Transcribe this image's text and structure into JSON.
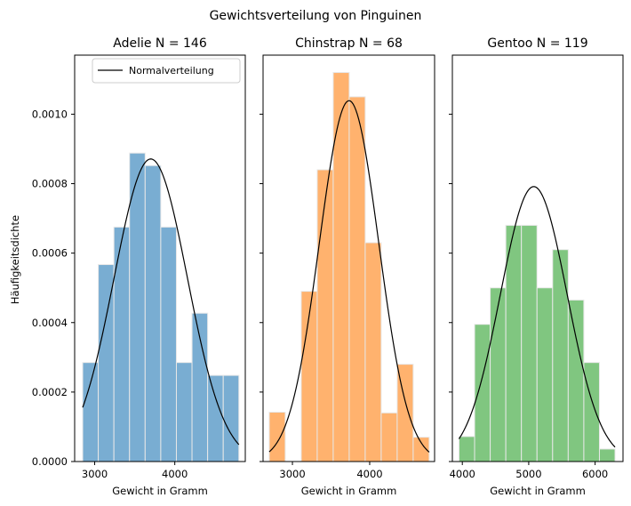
{
  "figure": {
    "suptitle": "Gewichtsverteilung von Pinguinen",
    "ylabel": "Häufigkeitsdichte",
    "legend_label": "Normalverteilung"
  },
  "chart_data": [
    {
      "type": "bar",
      "title": "Adelie N = 146",
      "xlabel": "Gewicht in Gramm",
      "ylabel": "Häufigkeitsdichte",
      "color": "#1f77b4",
      "bin_edges": [
        2850,
        3045,
        3240,
        3435,
        3630,
        3825,
        4020,
        4215,
        4410,
        4605,
        4800
      ],
      "values": [
        0.000285,
        0.000567,
        0.000675,
        0.000888,
        0.000852,
        0.000675,
        0.000285,
        0.000427,
        0.000248,
        0.000248
      ],
      "normal": {
        "mean": 3700,
        "std": 458
      },
      "xlim": [
        2750,
        4880
      ],
      "ylim": [
        0,
        0.00117
      ],
      "xticks": [
        3000,
        4000
      ],
      "xtick_labels": [
        "3000",
        "4000"
      ],
      "yticks": [
        0,
        0.0002,
        0.0004,
        0.0006,
        0.0008,
        0.001
      ],
      "ytick_labels": [
        "0.0000",
        "0.0002",
        "0.0004",
        "0.0006",
        "0.0008",
        "0.0010"
      ],
      "legend": "top-right"
    },
    {
      "type": "bar",
      "title": "Chinstrap N = 68",
      "xlabel": "Gewicht in Gramm",
      "color": "#ff7f0e",
      "bin_edges": [
        2700,
        2907,
        3114,
        3321,
        3528,
        3735,
        3942,
        4149,
        4356,
        4563,
        4770
      ],
      "values": [
        0.000142,
        0,
        0.00049,
        0.00084,
        0.00112,
        0.00105,
        0.00063,
        0.00014,
        0.00028,
        7e-05
      ],
      "normal": {
        "mean": 3733,
        "std": 384
      },
      "xlim": [
        2620,
        4840
      ],
      "ylim": [
        0,
        0.00117
      ],
      "xticks": [
        3000,
        4000
      ],
      "xtick_labels": [
        "3000",
        "4000"
      ],
      "yticks": [
        0,
        0.0002,
        0.0004,
        0.0006,
        0.0008,
        0.001
      ]
    },
    {
      "type": "bar",
      "title": "Gentoo N = 119",
      "xlabel": "Gewicht in Gramm",
      "color": "#2ca02c",
      "bin_edges": [
        3950,
        4185,
        4420,
        4655,
        4890,
        5125,
        5360,
        5595,
        5830,
        6065,
        6300
      ],
      "values": [
        7.2e-05,
        0.000395,
        0.0005,
        0.00068,
        0.00068,
        0.0005,
        0.00061,
        0.000465,
        0.000285,
        3.6e-05
      ],
      "normal": {
        "mean": 5076,
        "std": 504
      },
      "xlim": [
        3850,
        6420
      ],
      "ylim": [
        0,
        0.00117
      ],
      "xticks": [
        4000,
        5000,
        6000
      ],
      "xtick_labels": [
        "4000",
        "5000",
        "6000"
      ],
      "yticks": [
        0,
        0.0002,
        0.0004,
        0.0006,
        0.0008,
        0.001
      ]
    }
  ]
}
